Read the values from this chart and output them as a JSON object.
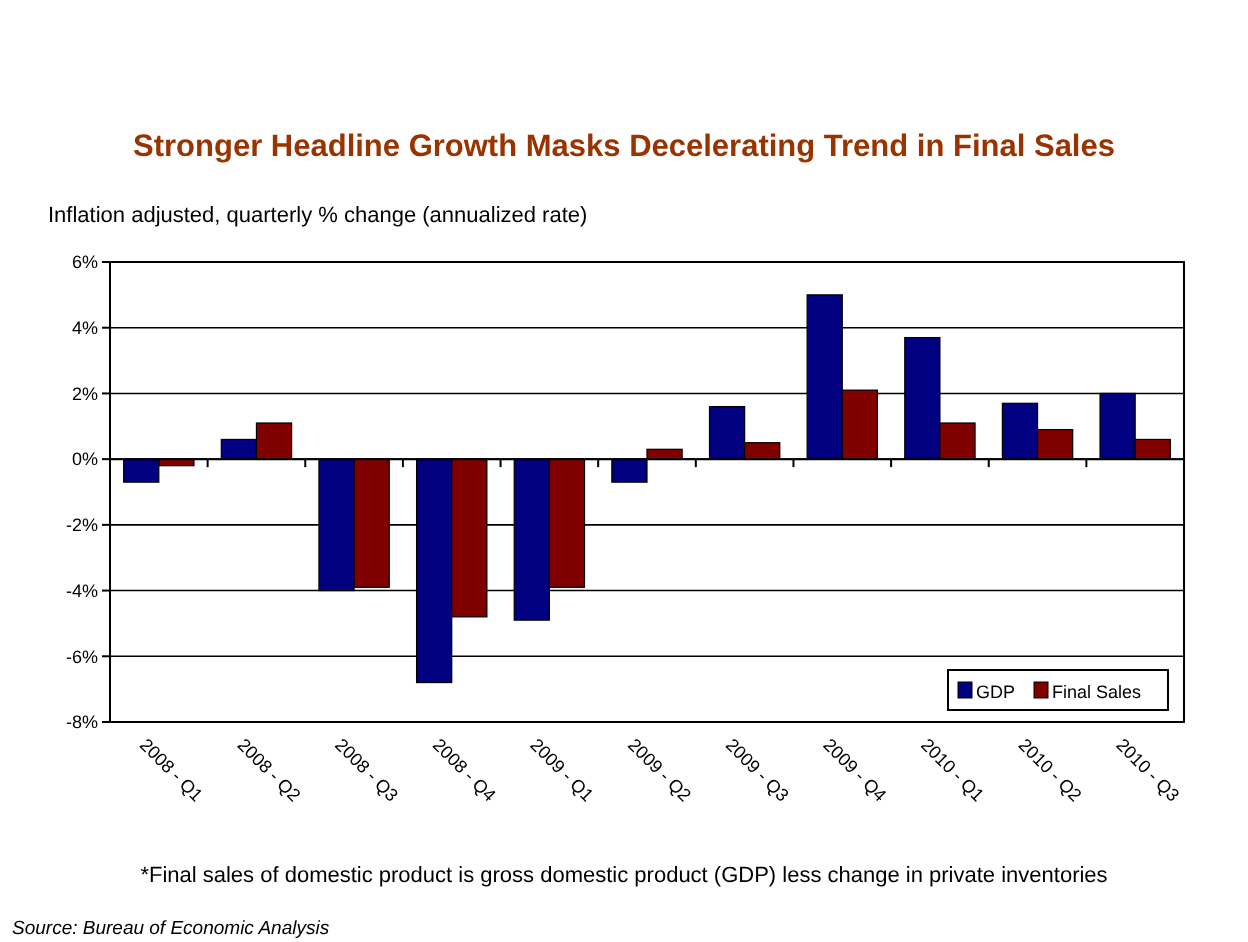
{
  "chart_data": {
    "type": "bar",
    "title": "Stronger Headline Growth Masks Decelerating Trend in Final Sales",
    "ylabel": "Inflation adjusted, quarterly % change (annualized rate)",
    "categories": [
      "2008 - Q1",
      "2008 - Q2",
      "2008 - Q3",
      "2008 - Q4",
      "2009 - Q1",
      "2009 - Q2",
      "2009 - Q3",
      "2009 - Q4",
      "2010 - Q1",
      "2010 - Q2",
      "2010 - Q3"
    ],
    "series": [
      {
        "name": "GDP",
        "color": "#000080",
        "values": [
          -0.7,
          0.6,
          -4.0,
          -6.8,
          -4.9,
          -0.7,
          1.6,
          5.0,
          3.7,
          1.7,
          2.0
        ]
      },
      {
        "name": "Final Sales",
        "color": "#800000",
        "values": [
          -0.2,
          1.1,
          -3.9,
          -4.8,
          -3.9,
          0.3,
          0.5,
          2.1,
          1.1,
          0.9,
          0.6
        ]
      }
    ],
    "ylim": [
      -8,
      6
    ],
    "yticks": [
      {
        "value": -8,
        "label": "-8%"
      },
      {
        "value": -6,
        "label": "-6%"
      },
      {
        "value": -4,
        "label": "-4%"
      },
      {
        "value": -2,
        "label": "-2%"
      },
      {
        "value": 0,
        "label": "0%"
      },
      {
        "value": 2,
        "label": "2%"
      },
      {
        "value": 4,
        "label": "4%"
      },
      {
        "value": 6,
        "label": "6%"
      }
    ],
    "grid": "y",
    "legend": "bottom right",
    "annotations": [
      "*Final sales of domestic product is gross domestic product (GDP) less change in private inventories",
      "Source: Bureau of Economic Analysis"
    ]
  }
}
